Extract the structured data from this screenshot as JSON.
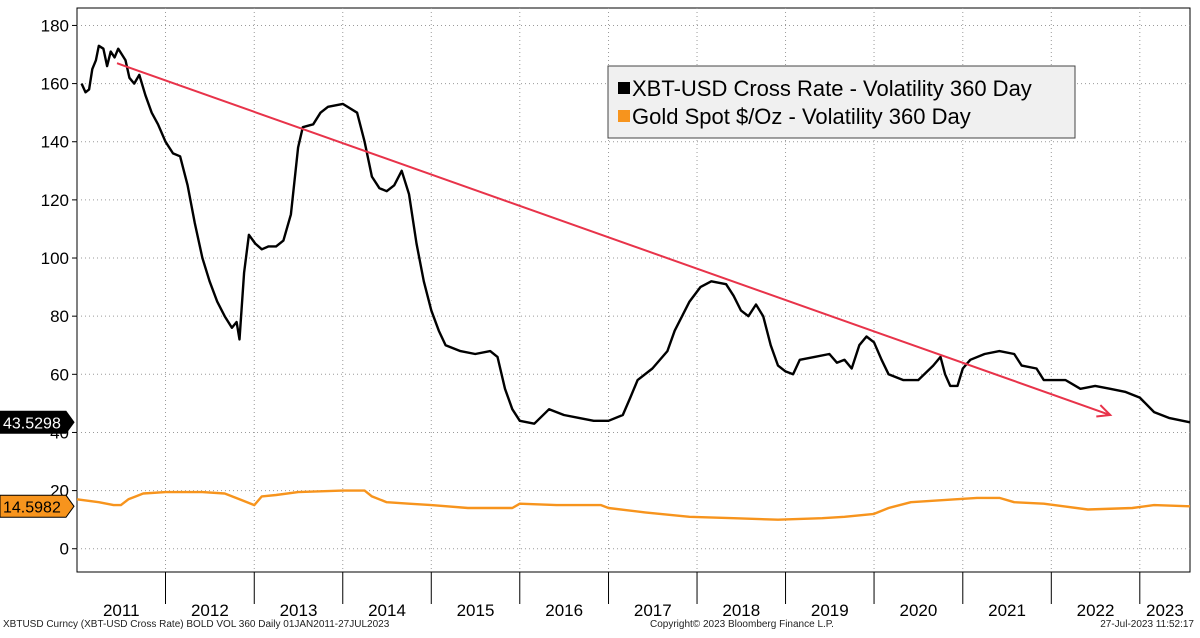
{
  "chart_data": {
    "type": "line",
    "x_axis": {
      "labels": [
        "2011",
        "2012",
        "2013",
        "2014",
        "2015",
        "2016",
        "2017",
        "2018",
        "2019",
        "2020",
        "2021",
        "2022",
        "2023"
      ],
      "range": [
        "2011-01-01",
        "2023-07-27"
      ]
    },
    "y_axis": {
      "ticks": [
        0,
        20,
        40,
        60,
        80,
        100,
        120,
        140,
        160,
        180
      ],
      "range": [
        -8,
        186
      ]
    },
    "grid": "dotted",
    "legend_position": "top-right",
    "series": [
      {
        "name": "XBT-USD Cross Rate - Volatility 360 Day",
        "color": "#000000",
        "last_value": "43.5298",
        "points": [
          [
            "2011-01-20",
            160
          ],
          [
            "2011-02-05",
            157
          ],
          [
            "2011-02-20",
            158
          ],
          [
            "2011-03-05",
            165
          ],
          [
            "2011-03-20",
            168
          ],
          [
            "2011-04-01",
            173
          ],
          [
            "2011-04-20",
            172
          ],
          [
            "2011-05-05",
            166
          ],
          [
            "2011-05-20",
            171
          ],
          [
            "2011-06-05",
            169
          ],
          [
            "2011-06-20",
            172
          ],
          [
            "2011-07-05",
            170
          ],
          [
            "2011-07-20",
            168
          ],
          [
            "2011-08-05",
            162
          ],
          [
            "2011-08-25",
            160
          ],
          [
            "2011-09-15",
            163
          ],
          [
            "2011-10-10",
            156
          ],
          [
            "2011-11-05",
            150
          ],
          [
            "2011-12-01",
            146
          ],
          [
            "2012-01-01",
            140
          ],
          [
            "2012-02-01",
            136
          ],
          [
            "2012-03-01",
            135
          ],
          [
            "2012-04-01",
            125
          ],
          [
            "2012-05-01",
            112
          ],
          [
            "2012-06-01",
            100
          ],
          [
            "2012-07-01",
            92
          ],
          [
            "2012-08-01",
            85
          ],
          [
            "2012-09-01",
            80
          ],
          [
            "2012-10-01",
            76
          ],
          [
            "2012-10-20",
            78
          ],
          [
            "2012-11-01",
            72
          ],
          [
            "2012-11-20",
            95
          ],
          [
            "2012-12-10",
            108
          ],
          [
            "2013-01-05",
            105
          ],
          [
            "2013-02-01",
            103
          ],
          [
            "2013-03-01",
            104
          ],
          [
            "2013-04-01",
            104
          ],
          [
            "2013-05-01",
            106
          ],
          [
            "2013-06-01",
            115
          ],
          [
            "2013-07-01",
            138
          ],
          [
            "2013-07-20",
            145
          ],
          [
            "2013-09-01",
            146
          ],
          [
            "2013-10-01",
            150
          ],
          [
            "2013-11-01",
            152
          ],
          [
            "2014-01-01",
            153
          ],
          [
            "2014-03-01",
            150
          ],
          [
            "2014-04-01",
            140
          ],
          [
            "2014-05-01",
            128
          ],
          [
            "2014-06-01",
            124
          ],
          [
            "2014-07-01",
            123
          ],
          [
            "2014-08-01",
            125
          ],
          [
            "2014-09-01",
            130
          ],
          [
            "2014-10-01",
            122
          ],
          [
            "2014-11-01",
            105
          ],
          [
            "2014-12-01",
            92
          ],
          [
            "2015-01-01",
            82
          ],
          [
            "2015-02-01",
            75
          ],
          [
            "2015-03-01",
            70
          ],
          [
            "2015-05-01",
            68
          ],
          [
            "2015-07-01",
            67
          ],
          [
            "2015-09-01",
            68
          ],
          [
            "2015-10-01",
            66
          ],
          [
            "2015-11-01",
            55
          ],
          [
            "2015-12-01",
            48
          ],
          [
            "2016-01-01",
            44
          ],
          [
            "2016-03-01",
            43
          ],
          [
            "2016-05-01",
            48
          ],
          [
            "2016-07-01",
            46
          ],
          [
            "2016-09-01",
            45
          ],
          [
            "2016-11-01",
            44
          ],
          [
            "2017-01-01",
            44
          ],
          [
            "2017-03-01",
            46
          ],
          [
            "2017-04-01",
            52
          ],
          [
            "2017-05-01",
            58
          ],
          [
            "2017-07-01",
            62
          ],
          [
            "2017-09-01",
            68
          ],
          [
            "2017-10-01",
            75
          ],
          [
            "2017-12-01",
            85
          ],
          [
            "2018-01-15",
            90
          ],
          [
            "2018-03-01",
            92
          ],
          [
            "2018-05-01",
            91
          ],
          [
            "2018-06-01",
            87
          ],
          [
            "2018-07-01",
            82
          ],
          [
            "2018-08-01",
            80
          ],
          [
            "2018-09-01",
            84
          ],
          [
            "2018-10-01",
            80
          ],
          [
            "2018-11-01",
            70
          ],
          [
            "2018-12-01",
            63
          ],
          [
            "2019-01-01",
            61
          ],
          [
            "2019-02-01",
            60
          ],
          [
            "2019-03-01",
            65
          ],
          [
            "2019-05-01",
            66
          ],
          [
            "2019-07-01",
            67
          ],
          [
            "2019-08-01",
            64
          ],
          [
            "2019-09-01",
            65
          ],
          [
            "2019-10-01",
            62
          ],
          [
            "2019-11-01",
            70
          ],
          [
            "2019-12-01",
            73
          ],
          [
            "2020-01-01",
            71
          ],
          [
            "2020-02-01",
            65
          ],
          [
            "2020-03-01",
            60
          ],
          [
            "2020-05-01",
            58
          ],
          [
            "2020-07-01",
            58
          ],
          [
            "2020-09-01",
            63
          ],
          [
            "2020-10-01",
            66
          ],
          [
            "2020-10-20",
            60
          ],
          [
            "2020-11-10",
            56
          ],
          [
            "2020-12-10",
            56
          ],
          [
            "2021-01-01",
            62
          ],
          [
            "2021-02-01",
            65
          ],
          [
            "2021-04-01",
            67
          ],
          [
            "2021-06-01",
            68
          ],
          [
            "2021-08-01",
            67
          ],
          [
            "2021-09-01",
            63
          ],
          [
            "2021-11-01",
            62
          ],
          [
            "2021-12-01",
            58
          ],
          [
            "2022-01-01",
            58
          ],
          [
            "2022-03-01",
            58
          ],
          [
            "2022-05-01",
            55
          ],
          [
            "2022-07-01",
            56
          ],
          [
            "2022-09-01",
            55
          ],
          [
            "2022-11-01",
            54
          ],
          [
            "2023-01-01",
            52
          ],
          [
            "2023-03-01",
            47
          ],
          [
            "2023-05-01",
            45
          ],
          [
            "2023-07-27",
            43.5
          ]
        ]
      },
      {
        "name": "Gold Spot $/Oz - Volatility 360 Day",
        "color": "#f7941d",
        "last_value": "14.5982",
        "points": [
          [
            "2011-01-01",
            17
          ],
          [
            "2011-04-01",
            16
          ],
          [
            "2011-06-01",
            15
          ],
          [
            "2011-07-01",
            15
          ],
          [
            "2011-08-01",
            17
          ],
          [
            "2011-09-01",
            18
          ],
          [
            "2011-10-01",
            19
          ],
          [
            "2012-01-01",
            19.5
          ],
          [
            "2012-06-01",
            19.5
          ],
          [
            "2012-09-01",
            19
          ],
          [
            "2012-11-01",
            17
          ],
          [
            "2013-01-01",
            15
          ],
          [
            "2013-02-01",
            18
          ],
          [
            "2013-04-01",
            18.5
          ],
          [
            "2013-07-01",
            19.5
          ],
          [
            "2014-01-01",
            20
          ],
          [
            "2014-04-01",
            20
          ],
          [
            "2014-05-01",
            18
          ],
          [
            "2014-07-01",
            16
          ],
          [
            "2014-10-01",
            15.5
          ],
          [
            "2015-01-01",
            15
          ],
          [
            "2015-06-01",
            14
          ],
          [
            "2015-12-01",
            14
          ],
          [
            "2016-01-01",
            15.5
          ],
          [
            "2016-06-01",
            15
          ],
          [
            "2016-12-01",
            15
          ],
          [
            "2017-01-01",
            14
          ],
          [
            "2017-06-01",
            12.5
          ],
          [
            "2017-12-01",
            11
          ],
          [
            "2018-06-01",
            10.5
          ],
          [
            "2018-12-01",
            10
          ],
          [
            "2019-06-01",
            10.5
          ],
          [
            "2019-09-01",
            11
          ],
          [
            "2020-01-01",
            12
          ],
          [
            "2020-03-01",
            14
          ],
          [
            "2020-06-01",
            16
          ],
          [
            "2020-12-01",
            17
          ],
          [
            "2021-03-01",
            17.5
          ],
          [
            "2021-06-01",
            17.5
          ],
          [
            "2021-08-01",
            16
          ],
          [
            "2021-12-01",
            15.5
          ],
          [
            "2022-03-01",
            14.5
          ],
          [
            "2022-06-01",
            13.5
          ],
          [
            "2022-12-01",
            14
          ],
          [
            "2023-03-01",
            15
          ],
          [
            "2023-07-27",
            14.6
          ]
        ]
      }
    ],
    "annotations": [
      {
        "type": "trend-arrow",
        "color": "#e8334a",
        "from": [
          "2011-06-15",
          167
        ],
        "to": [
          "2022-09-01",
          46
        ]
      }
    ]
  },
  "footer": {
    "left": "XBTUSD Curncy (XBT-USD Cross Rate) BOLD VOL 360  Daily 01JAN2011-27JUL2023",
    "center": "Copyright© 2023 Bloomberg Finance L.P.",
    "right": "27-Jul-2023 11:52:17"
  }
}
